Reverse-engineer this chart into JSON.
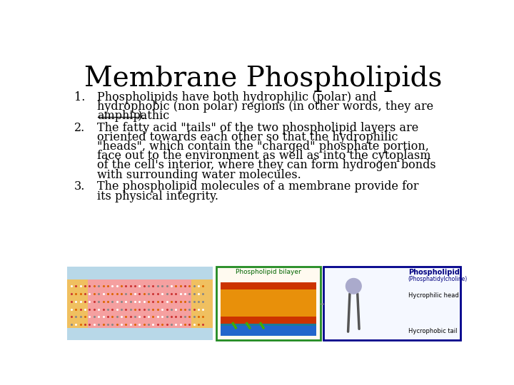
{
  "title": "Membrane Phospholipids",
  "title_fontsize": 28,
  "title_font": "serif",
  "background_color": "#ffffff",
  "text_color": "#000000",
  "body_fontsize": 11.5,
  "body_font": "serif",
  "items": [
    {
      "number": "1.",
      "lines": [
        "Phospholipids have both hydrophilic (polar) and",
        "hydrophobic (non polar) regions (in other words, they are",
        "amphipathic)."
      ],
      "underline_word": "amphipathic"
    },
    {
      "number": "2.",
      "lines": [
        "The fatty acid \"tails\" of the two phospholipid layers are",
        "oriented towards each other so that the hydrophilic",
        "\"heads\", which contain the \"charged\" phosphate portion,",
        "face out to the environment as well as into the cytoplasm",
        "of the cell's interior, where they can form hydrogen bonds",
        "with surrounding water molecules."
      ],
      "underline_word": null
    },
    {
      "number": "3.",
      "lines": [
        "The phospholipid molecules of a membrane provide for",
        "its physical integrity."
      ],
      "underline_word": null
    }
  ],
  "left_image_color": "#add8e6",
  "middle_image_border": "#228B22",
  "right_image_border": "#00008B"
}
